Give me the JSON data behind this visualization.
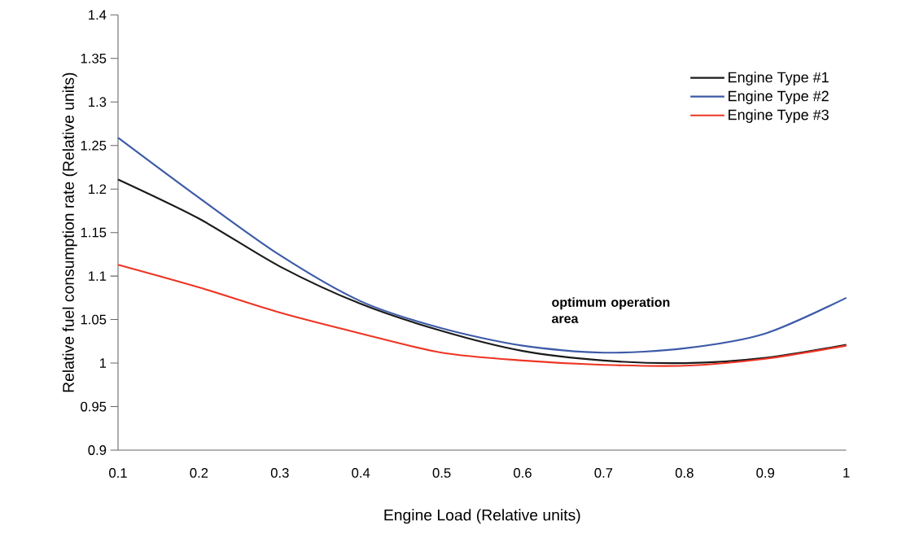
{
  "chart_data": {
    "type": "line",
    "xlabel": "Engine Load (Relative units)",
    "ylabel": "Relative fuel consumption rate (Relative units)",
    "x": [
      0.1,
      0.2,
      0.3,
      0.4,
      0.5,
      0.6,
      0.7,
      0.8,
      0.9,
      1.0
    ],
    "series": [
      {
        "name": "Engine Type #1",
        "color": "#1a1a1a",
        "values": [
          1.211,
          1.166,
          1.111,
          1.068,
          1.037,
          1.014,
          1.003,
          1.0,
          1.006,
          1.021
        ]
      },
      {
        "name": "Engine Type #2",
        "color": "#3c5aa8",
        "values": [
          1.259,
          1.19,
          1.124,
          1.071,
          1.04,
          1.02,
          1.012,
          1.017,
          1.034,
          1.075
        ]
      },
      {
        "name": "Engine Type #3",
        "color": "#ee3524",
        "values": [
          1.113,
          1.087,
          1.058,
          1.034,
          1.012,
          1.003,
          0.998,
          0.997,
          1.005,
          1.02
        ]
      }
    ],
    "xlim": [
      0.1,
      1
    ],
    "ylim": [
      0.9,
      1.4
    ],
    "xticks": [
      0.1,
      0.2,
      0.3,
      0.4,
      0.5,
      0.6,
      0.7,
      0.8,
      0.9,
      1
    ],
    "yticks": [
      0.9,
      0.95,
      1,
      1.05,
      1.1,
      1.15,
      1.2,
      1.25,
      1.3,
      1.35,
      1.4
    ],
    "legend": "top right",
    "grid": false,
    "marker": "none",
    "line_style": "solid",
    "annotations": [
      "optimum operation area"
    ]
  }
}
